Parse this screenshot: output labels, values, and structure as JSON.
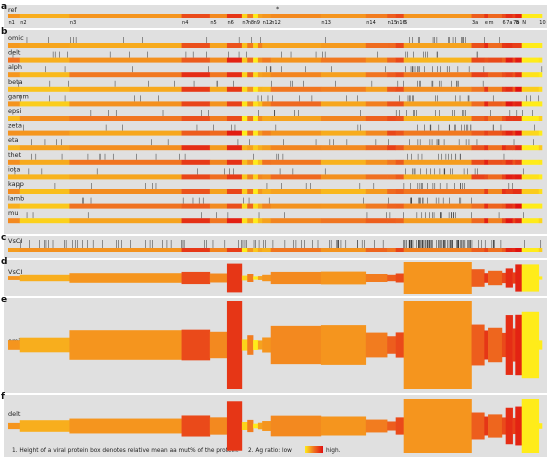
{
  "panels": {
    "a": "a",
    "b": "b",
    "c": "c",
    "d": "d",
    "e": "e",
    "f": "f"
  },
  "ref_track": "ref",
  "top_marker": "*",
  "genes": [
    {
      "label": "n1",
      "start": 0,
      "end": 2.2,
      "level": 0.35,
      "width_mean": 0.12
    },
    {
      "label": "n2",
      "start": 2.2,
      "end": 11.5,
      "level": 0.25,
      "width_mean": 0.2
    },
    {
      "label": "n3",
      "start": 11.5,
      "end": 32.5,
      "level": 0.35,
      "width_mean": 0.3
    },
    {
      "label": "n4",
      "start": 32.5,
      "end": 37.8,
      "level": 0.7,
      "width_mean": 0.38
    },
    {
      "label": "n5",
      "start": 37.8,
      "end": 41.0,
      "level": 0.4,
      "width_mean": 0.28
    },
    {
      "label": "n6",
      "start": 41.0,
      "end": 43.8,
      "level": 0.8,
      "width_mean": 0.9
    },
    {
      "label": "n7",
      "start": 43.8,
      "end": 44.8,
      "level": 0.1,
      "width_mean": 0.15
    },
    {
      "label": "n8",
      "start": 44.8,
      "end": 45.9,
      "level": 0.45,
      "width_mean": 0.25
    },
    {
      "label": "n9",
      "start": 45.9,
      "end": 46.8,
      "level": 0.0,
      "width_mean": 0.1
    },
    {
      "label": "n10",
      "start": 46.8,
      "end": 47.6,
      "level": 0.3,
      "width_mean": 0.12
    },
    {
      "label": "n12",
      "start": 47.6,
      "end": 49.2,
      "level": 0.35,
      "width_mean": 0.2
    },
    {
      "label": "n12",
      "start": 49.2,
      "end": 58.6,
      "level": 0.4,
      "width_mean": 0.38
    },
    {
      "label": "n13",
      "start": 58.6,
      "end": 67.0,
      "level": 0.35,
      "width_mean": 0.4
    },
    {
      "label": "n14",
      "start": 67.0,
      "end": 71.0,
      "level": 0.45,
      "width_mean": 0.25
    },
    {
      "label": "n15",
      "start": 71.0,
      "end": 72.6,
      "level": 0.6,
      "width_mean": 0.2
    },
    {
      "label": "n16",
      "start": 72.6,
      "end": 74.1,
      "level": 0.7,
      "width_mean": 0.28
    },
    {
      "label": "5",
      "start": 74.1,
      "end": 86.8,
      "level": 0.35,
      "width_mean": 1.0
    },
    {
      "label": "3a",
      "start": 86.8,
      "end": 89.2,
      "level": 0.6,
      "width_mean": 0.55
    },
    {
      "label": "e",
      "start": 89.2,
      "end": 89.9,
      "level": 0.8,
      "width_mean": 0.3
    },
    {
      "label": "m",
      "start": 89.9,
      "end": 92.5,
      "level": 0.55,
      "width_mean": 0.45
    },
    {
      "label": "6",
      "start": 92.5,
      "end": 93.2,
      "level": 0.7,
      "width_mean": 0.32
    },
    {
      "label": "7a",
      "start": 93.2,
      "end": 94.5,
      "level": 0.85,
      "width_mean": 0.6
    },
    {
      "label": "7b",
      "start": 94.5,
      "end": 95.0,
      "level": 0.75,
      "width_mean": 0.35
    },
    {
      "label": "8",
      "start": 95.0,
      "end": 96.2,
      "level": 0.9,
      "width_mean": 0.85
    },
    {
      "label": "N",
      "start": 96.2,
      "end": 99.4,
      "level": 0.0,
      "width_mean": 0.85
    },
    {
      "label": "10",
      "start": 99.4,
      "end": 100,
      "level": 0.0,
      "width_mean": 0.1
    }
  ],
  "variants": [
    "omic",
    "delt",
    "alph",
    "beta",
    "gamm",
    "epsi",
    "zeta",
    "eta",
    "thet",
    "iota",
    "kapp",
    "lamb",
    "mu"
  ],
  "vscl_label": "VsCI",
  "panel_d_label": "VsCI",
  "panel_e_label": "omic",
  "panel_f_label": "delt",
  "legend": {
    "note1": "1. Height of a viral protein box denotes relative mean aa mut% of the protein.",
    "note2_prefix": "2. Ag ratio: low",
    "note2_suffix": "high."
  },
  "colors": {
    "panel_bg": "#e0e0e0",
    "low": "#ffec1a",
    "high": "#e01010",
    "tick": "#333333"
  }
}
